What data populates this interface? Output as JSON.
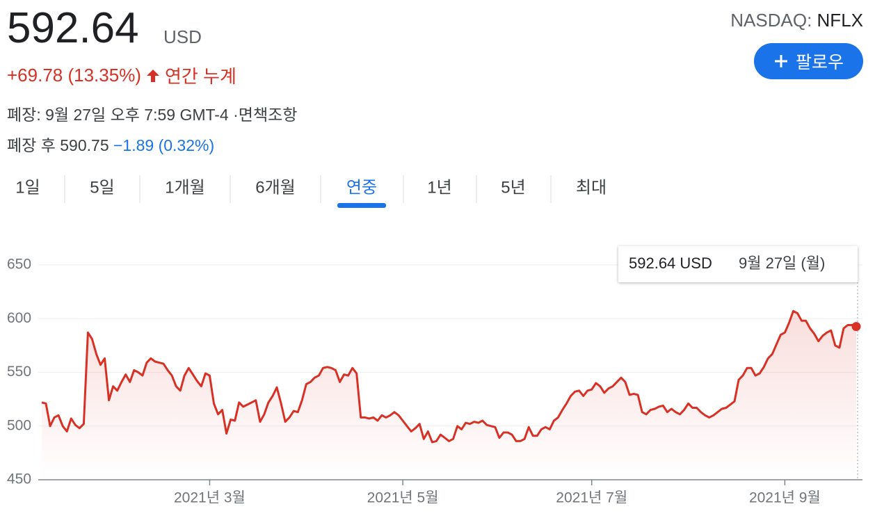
{
  "quote": {
    "price": "592.64",
    "currency": "USD",
    "change": "+69.78 (13.35%)",
    "period": "연간 누계",
    "exchange": "NASDAQ:",
    "symbol": "NFLX",
    "follow": "팔로우",
    "closed": "폐장: 9월 27일 오후 7:59 GMT-4 ·",
    "disclaimer": "면책조항",
    "after_hours": "폐장 후 590.75",
    "after_hours_change": "−1.89 (0.32%)"
  },
  "tabs": [
    "1일",
    "5일",
    "1개월",
    "6개월",
    "연중",
    "1년",
    "5년",
    "최대"
  ],
  "selected_tab": 4,
  "chart_data": {
    "type": "line",
    "color": "#d93025",
    "grid": true,
    "tooltip": {
      "value": "592.64 USD",
      "date": "9월 27일 (월)"
    },
    "xlim": [
      0,
      194
    ],
    "xticks": [
      {
        "value": 40,
        "label": "2021년 3월"
      },
      {
        "value": 86,
        "label": "2021년 5월"
      },
      {
        "value": 131,
        "label": "2021년 7월"
      },
      {
        "value": 177,
        "label": "2021년 9월"
      }
    ],
    "ylim": [
      450,
      650
    ],
    "yticks": [
      450,
      500,
      550,
      600,
      650
    ],
    "values": [
      522,
      521,
      500,
      508,
      510,
      500,
      495,
      507,
      501,
      498,
      502,
      587,
      581,
      567,
      557,
      563,
      524,
      537,
      533,
      541,
      548,
      541,
      552,
      550,
      547,
      559,
      563,
      560,
      559,
      558,
      552,
      547,
      537,
      533,
      547,
      554,
      548,
      542,
      537,
      549,
      547,
      521,
      511,
      515,
      493,
      506,
      505,
      522,
      518,
      520,
      522,
      524,
      504,
      511,
      522,
      528,
      536,
      521,
      504,
      508,
      514,
      513,
      524,
      539,
      541,
      545,
      547,
      554,
      555,
      554,
      552,
      541,
      548,
      547,
      554,
      549,
      508,
      508,
      507,
      508,
      505,
      510,
      508,
      510,
      513,
      510,
      505,
      500,
      495,
      498,
      502,
      488,
      495,
      485,
      486,
      492,
      489,
      486,
      488,
      500,
      497,
      503,
      502,
      504,
      503,
      505,
      501,
      500,
      499,
      489,
      494,
      494,
      492,
      486,
      486,
      488,
      499,
      491,
      491,
      497,
      499,
      497,
      505,
      508,
      515,
      521,
      528,
      532,
      533,
      528,
      533,
      534,
      540,
      537,
      531,
      535,
      537,
      541,
      545,
      541,
      529,
      530,
      529,
      513,
      511,
      515,
      516,
      518,
      519,
      513,
      516,
      513,
      511,
      515,
      521,
      517,
      517,
      513,
      510,
      508,
      510,
      513,
      516,
      517,
      520,
      523,
      543,
      547,
      554,
      554,
      547,
      549,
      555,
      563,
      567,
      576,
      585,
      587,
      596,
      607,
      605,
      598,
      598,
      591,
      586,
      579,
      584,
      587,
      589,
      575,
      573,
      591,
      594,
      594,
      592.64
    ]
  }
}
